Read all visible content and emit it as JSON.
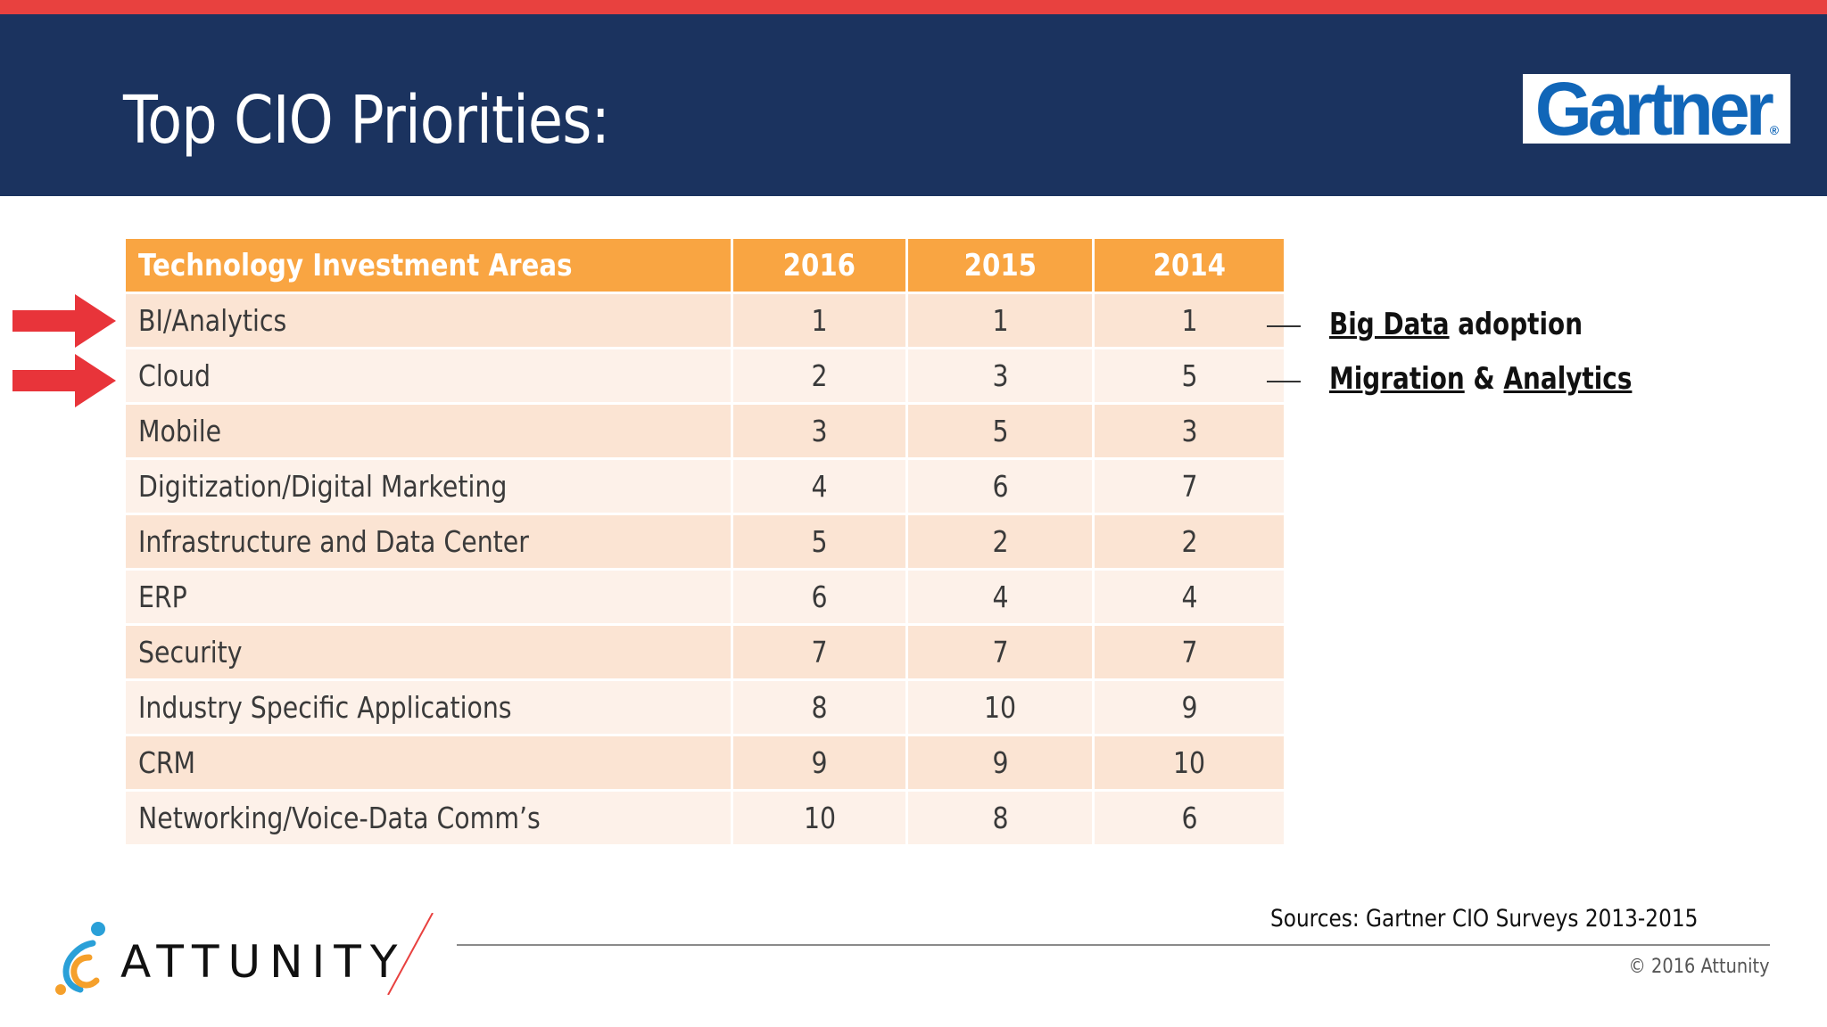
{
  "header": {
    "title": "Top CIO Priorities:",
    "brand_logo": "Gartner",
    "brand_registered": "®"
  },
  "table": {
    "columns": [
      "Technology Investment Areas",
      "2016",
      "2015",
      "2014"
    ],
    "rows": [
      {
        "area": "BI/Analytics",
        "y2016": "1",
        "y2015": "1",
        "y2014": "1"
      },
      {
        "area": "Cloud",
        "y2016": "2",
        "y2015": "3",
        "y2014": "5"
      },
      {
        "area": "Mobile",
        "y2016": "3",
        "y2015": "5",
        "y2014": "3"
      },
      {
        "area": "Digitization/Digital Marketing",
        "y2016": "4",
        "y2015": "6",
        "y2014": "7"
      },
      {
        "area": "Infrastructure and Data Center",
        "y2016": "5",
        "y2015": "2",
        "y2014": "2"
      },
      {
        "area": "ERP",
        "y2016": "6",
        "y2015": "4",
        "y2014": "4"
      },
      {
        "area": "Security",
        "y2016": "7",
        "y2015": "7",
        "y2014": "7"
      },
      {
        "area": "Industry Specific Applications",
        "y2016": "8",
        "y2015": "10",
        "y2014": "9"
      },
      {
        "area": "CRM",
        "y2016": "9",
        "y2015": "9",
        "y2014": "10"
      },
      {
        "area": "Networking/Voice-Data Comm’s",
        "y2016": "10",
        "y2015": "8",
        "y2014": "6"
      }
    ]
  },
  "annotations": {
    "bi": {
      "part1": "Big Data",
      "part2": "adoption"
    },
    "cloud": {
      "part1": "Migration",
      "part2": "&",
      "part3": "Analytics"
    }
  },
  "footer": {
    "logo_text": "ATTUNITY",
    "sources": "Sources: Gartner CIO Surveys 2013-2015",
    "copyright": "© 2016 Attunity"
  },
  "colors": {
    "header_band": "#1b335f",
    "top_stripe": "#e8413f",
    "table_header": "#f9a542",
    "row_odd": "#fbe4d3",
    "row_even": "#fdf1e9",
    "arrow": "#e8343a",
    "gartner_blue": "#1166b8"
  }
}
